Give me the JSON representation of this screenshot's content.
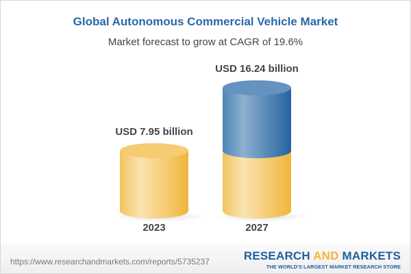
{
  "chart_data": {
    "type": "bar",
    "style": "3d-cylinder",
    "title": "Global Autonomous Commercial Vehicle Market",
    "subtitle": "Market forecast to grow at CAGR of 19.6%",
    "categories": [
      "2023",
      "2027"
    ],
    "values": [
      7.95,
      16.24
    ],
    "data_labels": [
      "USD 7.95 billion",
      "USD 16.24 billion"
    ],
    "colors": {
      "base": "#f2c25a",
      "growth": "#3f7bb0",
      "title": "#2a68a8"
    },
    "grid": false
  },
  "footer": {
    "url": "https://www.researchandmarkets.com/reports/5735237",
    "logo_part1": "RESEARCH ",
    "logo_part2": "AND",
    "logo_part3": " MARKETS",
    "logo_tagline": "THE WORLD'S LARGEST MARKET RESEARCH STORE"
  }
}
